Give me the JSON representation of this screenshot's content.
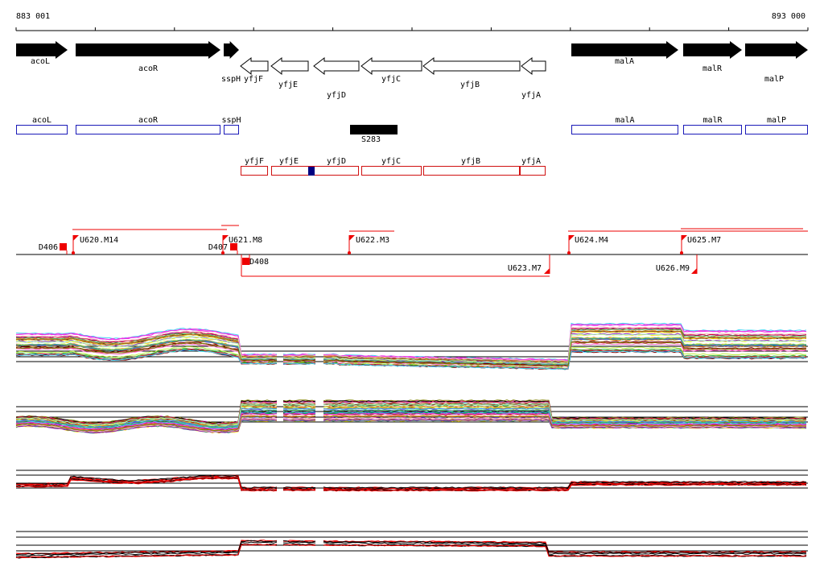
{
  "ruler": {
    "start_label": "883 001",
    "end_label": "893 000"
  },
  "genes": [
    {
      "label": "acoL",
      "strand": "+"
    },
    {
      "label": "acoR",
      "strand": "+"
    },
    {
      "label": "sspH",
      "strand": "+"
    },
    {
      "label": "yfjF",
      "strand": "-"
    },
    {
      "label": "yfjE",
      "strand": "-"
    },
    {
      "label": "yfjD",
      "strand": "-"
    },
    {
      "label": "yfjC",
      "strand": "-"
    },
    {
      "label": "yfjB",
      "strand": "-"
    },
    {
      "label": "yfjA",
      "strand": "-"
    },
    {
      "label": "malA",
      "strand": "+"
    },
    {
      "label": "malR",
      "strand": "+"
    },
    {
      "label": "malP",
      "strand": "+"
    }
  ],
  "forward_boxes": [
    "acoL",
    "acoR",
    "sspH",
    "malA",
    "malR",
    "malP"
  ],
  "feature": {
    "label": "S283"
  },
  "reverse_boxes": [
    "yfjF",
    "yfjE",
    "yfjD",
    "yfjC",
    "yfjB",
    "yfjA"
  ],
  "markers": [
    "D406",
    "U620.M14",
    "D407",
    "U621.M8",
    "U622.M3",
    "U624.M4",
    "U625.M7",
    "D408",
    "U623.M7",
    "U626.M9"
  ],
  "colors": {
    "gene_fill": "#000000",
    "forward_box": "#1a1ab8",
    "reverse_box": "#d01010",
    "feature": "#000000",
    "inner_mark": "#000080",
    "marker": "#ee0000"
  }
}
